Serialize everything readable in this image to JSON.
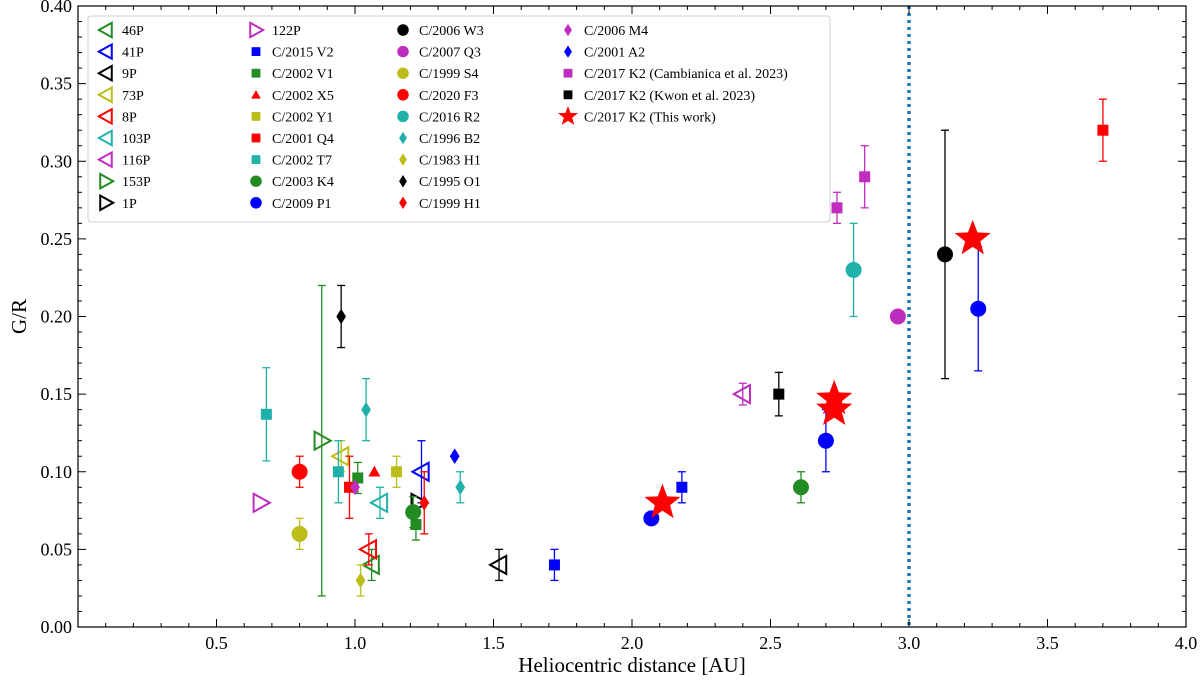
{
  "chart_data": {
    "type": "scatter",
    "title": "",
    "xlabel": "Heliocentric distance [AU]",
    "ylabel": "G/R",
    "xlim": [
      0.0,
      4.0
    ],
    "ylim": [
      0.0,
      0.4
    ],
    "x_ticks": [
      0.5,
      1.0,
      1.5,
      2.0,
      2.5,
      3.0,
      3.5,
      4.0
    ],
    "x_tick_labels": [
      "0.5",
      "1.0",
      "1.5",
      "2.0",
      "2.5",
      "3.0",
      "3.5",
      "4.0"
    ],
    "y_ticks": [
      0.0,
      0.05,
      0.1,
      0.15,
      0.2,
      0.25,
      0.3,
      0.35,
      0.4
    ],
    "y_tick_labels": [
      "0.00",
      "0.05",
      "0.10",
      "0.15",
      "0.20",
      "0.25",
      "0.30",
      "0.35",
      "0.40"
    ],
    "vline": {
      "x": 3.0,
      "style": "dotted",
      "color": "#1f77b4"
    },
    "legend_position": "top-left",
    "series": [
      {
        "name": "46P",
        "marker": "triangle-left-open",
        "color": "#228B22",
        "points": [
          {
            "x": 1.06,
            "y": 0.04,
            "err": [
              0.01,
              0.01
            ]
          }
        ]
      },
      {
        "name": "41P",
        "marker": "triangle-left-open",
        "color": "#0000FF",
        "points": [
          {
            "x": 1.24,
            "y": 0.1,
            "err": [
              0.02,
              0.02
            ]
          }
        ]
      },
      {
        "name": "9P",
        "marker": "triangle-left-open",
        "color": "#000000",
        "points": [
          {
            "x": 1.52,
            "y": 0.04,
            "err": [
              0.01,
              0.01
            ]
          }
        ]
      },
      {
        "name": "73P",
        "marker": "triangle-left-open",
        "color": "#BDBD1A",
        "points": [
          {
            "x": 0.95,
            "y": 0.11,
            "err": [
              0.01,
              0.01
            ]
          }
        ]
      },
      {
        "name": "8P",
        "marker": "triangle-left-open",
        "color": "#FF0000",
        "points": [
          {
            "x": 1.05,
            "y": 0.05,
            "err": [
              0.01,
              0.01
            ]
          }
        ]
      },
      {
        "name": "103P",
        "marker": "triangle-left-open",
        "color": "#20B2AA",
        "points": [
          {
            "x": 1.09,
            "y": 0.08,
            "err": [
              0.01,
              0.01
            ]
          }
        ]
      },
      {
        "name": "116P",
        "marker": "triangle-left-open",
        "color": "#BF2DBF",
        "points": [
          {
            "x": 2.4,
            "y": 0.15,
            "err": [
              0.007,
              0.007
            ]
          }
        ]
      },
      {
        "name": "153P",
        "marker": "triangle-right-open",
        "color": "#228B22",
        "points": [
          {
            "x": 0.88,
            "y": 0.12,
            "err": [
              0.1,
              0.1
            ]
          }
        ]
      },
      {
        "name": "1P",
        "marker": "triangle-right-open",
        "color": "#000000",
        "points": [
          {
            "x": 1.23,
            "y": 0.08,
            "err": [
              0.0,
              0.0
            ]
          }
        ]
      },
      {
        "name": "122P",
        "marker": "triangle-right-open",
        "color": "#BF2DBF",
        "points": [
          {
            "x": 0.66,
            "y": 0.08,
            "err": [
              0.0,
              0.0
            ]
          }
        ]
      },
      {
        "name": "C/2015 V2",
        "marker": "square",
        "color": "#0000FF",
        "points": [
          {
            "x": 1.72,
            "y": 0.04,
            "err": [
              0.01,
              0.01
            ]
          },
          {
            "x": 2.18,
            "y": 0.09,
            "err": [
              0.01,
              0.01
            ]
          }
        ]
      },
      {
        "name": "C/2002 V1",
        "marker": "square",
        "color": "#228B22",
        "points": [
          {
            "x": 1.01,
            "y": 0.096,
            "err": [
              0.01,
              0.01
            ]
          },
          {
            "x": 1.22,
            "y": 0.066,
            "err": [
              0.01,
              0.01
            ]
          }
        ]
      },
      {
        "name": "C/2002 X5",
        "marker": "triangle-up",
        "color": "#FF0000",
        "points": [
          {
            "x": 1.07,
            "y": 0.1,
            "err": [
              0.0,
              0.0
            ]
          }
        ]
      },
      {
        "name": "C/2002 Y1",
        "marker": "square",
        "color": "#BDBD1A",
        "points": [
          {
            "x": 1.15,
            "y": 0.1,
            "err": [
              0.01,
              0.01
            ]
          }
        ]
      },
      {
        "name": "C/2001 Q4",
        "marker": "square",
        "color": "#FF0000",
        "points": [
          {
            "x": 0.98,
            "y": 0.09,
            "err": [
              0.02,
              0.02
            ]
          },
          {
            "x": 3.7,
            "y": 0.32,
            "err": [
              0.02,
              0.02
            ]
          }
        ]
      },
      {
        "name": "C/2002 T7",
        "marker": "square",
        "color": "#20B2AA",
        "points": [
          {
            "x": 0.68,
            "y": 0.137,
            "err": [
              0.03,
              0.03
            ]
          },
          {
            "x": 0.94,
            "y": 0.1,
            "err": [
              0.02,
              0.02
            ]
          }
        ]
      },
      {
        "name": "C/2003 K4",
        "marker": "circle",
        "color": "#228B22",
        "points": [
          {
            "x": 1.21,
            "y": 0.074,
            "err": [
              0.01,
              0.01
            ]
          },
          {
            "x": 2.61,
            "y": 0.09,
            "err": [
              0.01,
              0.01
            ]
          }
        ]
      },
      {
        "name": "C/2009 P1",
        "marker": "circle",
        "color": "#0000FF",
        "points": [
          {
            "x": 2.07,
            "y": 0.07,
            "err": [
              0.0,
              0.0
            ]
          },
          {
            "x": 2.7,
            "y": 0.12,
            "err": [
              0.02,
              0.02
            ]
          },
          {
            "x": 3.25,
            "y": 0.205,
            "err": [
              0.04,
              0.04
            ]
          }
        ]
      },
      {
        "name": "C/2006 W3",
        "marker": "circle",
        "color": "#000000",
        "points": [
          {
            "x": 3.13,
            "y": 0.24,
            "err": [
              0.08,
              0.08
            ]
          }
        ]
      },
      {
        "name": "C/2007 Q3",
        "marker": "circle",
        "color": "#BF2DBF",
        "points": [
          {
            "x": 2.96,
            "y": 0.2,
            "err": [
              0.0,
              0.0
            ]
          }
        ]
      },
      {
        "name": "C/1999 S4",
        "marker": "circle",
        "color": "#BDBD1A",
        "points": [
          {
            "x": 0.8,
            "y": 0.06,
            "err": [
              0.01,
              0.01
            ]
          }
        ]
      },
      {
        "name": "C/2020 F3",
        "marker": "circle",
        "color": "#FF0000",
        "points": [
          {
            "x": 0.8,
            "y": 0.1,
            "err": [
              0.01,
              0.01
            ]
          }
        ]
      },
      {
        "name": "C/2016 R2",
        "marker": "circle",
        "color": "#20B2AA",
        "points": [
          {
            "x": 2.8,
            "y": 0.23,
            "err": [
              0.03,
              0.03
            ]
          }
        ]
      },
      {
        "name": "C/1996 B2",
        "marker": "diamond",
        "color": "#20B2AA",
        "points": [
          {
            "x": 1.04,
            "y": 0.14,
            "err": [
              0.02,
              0.02
            ]
          },
          {
            "x": 1.38,
            "y": 0.09,
            "err": [
              0.01,
              0.01
            ]
          }
        ]
      },
      {
        "name": "C/1983 H1",
        "marker": "diamond",
        "color": "#BDBD1A",
        "points": [
          {
            "x": 1.02,
            "y": 0.03,
            "err": [
              0.01,
              0.01
            ]
          }
        ]
      },
      {
        "name": "C/1995 O1",
        "marker": "diamond",
        "color": "#000000",
        "points": [
          {
            "x": 0.95,
            "y": 0.2,
            "err": [
              0.02,
              0.02
            ]
          }
        ]
      },
      {
        "name": "C/1999 H1",
        "marker": "diamond",
        "color": "#FF0000",
        "points": [
          {
            "x": 1.25,
            "y": 0.08,
            "err": [
              0.02,
              0.02
            ]
          }
        ]
      },
      {
        "name": "C/2006 M4",
        "marker": "diamond",
        "color": "#BF2DBF",
        "points": [
          {
            "x": 1.0,
            "y": 0.09,
            "err": [
              0.0,
              0.0
            ]
          }
        ]
      },
      {
        "name": "C/2001 A2",
        "marker": "diamond",
        "color": "#0000FF",
        "points": [
          {
            "x": 1.36,
            "y": 0.11,
            "err": [
              0.0,
              0.0
            ]
          }
        ]
      },
      {
        "name": "C/2017 K2 (Cambianica et al. 2023)",
        "marker": "square",
        "color": "#BF2DBF",
        "points": [
          {
            "x": 2.74,
            "y": 0.27,
            "err": [
              0.01,
              0.01
            ]
          },
          {
            "x": 2.84,
            "y": 0.29,
            "err": [
              0.02,
              0.02
            ]
          }
        ]
      },
      {
        "name": "C/2017 K2 (Kwon et al. 2023)",
        "marker": "square",
        "color": "#000000",
        "points": [
          {
            "x": 2.53,
            "y": 0.15,
            "err": [
              0.014,
              0.014
            ]
          }
        ]
      },
      {
        "name": "C/2017 K2 (This work)",
        "marker": "star",
        "color": "#FF0000",
        "points": [
          {
            "x": 2.11,
            "y": 0.08,
            "err": [
              0.0,
              0.0
            ]
          },
          {
            "x": 2.73,
            "y": 0.14,
            "err": [
              0.0,
              0.0
            ]
          },
          {
            "x": 2.73,
            "y": 0.147,
            "err": [
              0.0,
              0.0
            ]
          },
          {
            "x": 3.23,
            "y": 0.25,
            "err": [
              0.0,
              0.0
            ]
          }
        ]
      }
    ]
  }
}
